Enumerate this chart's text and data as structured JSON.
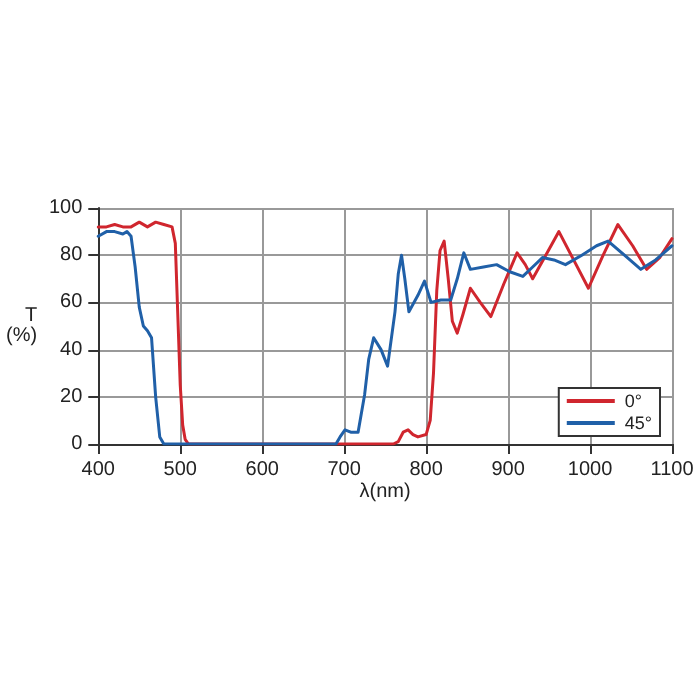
{
  "chart_data": {
    "type": "line",
    "xlabel": "λ(nm)",
    "ylabel": "T\n(%)",
    "xlim": [
      400,
      1100
    ],
    "xticks": [
      400,
      500,
      600,
      700,
      800,
      900,
      1000,
      1100
    ],
    "ylim": [
      0,
      100
    ],
    "yticks": [
      0,
      20,
      40,
      60,
      80,
      100
    ],
    "grid": true,
    "legend": "bottom right",
    "marker": "none",
    "line_style": "solid",
    "series": [
      {
        "name": "0°",
        "color": "#d0262e",
        "x": [
          400,
          410,
          420,
          430,
          440,
          450,
          460,
          470,
          480,
          490,
          494,
          497,
          500,
          503,
          506,
          510,
          600,
          700,
          760,
          766,
          772,
          778,
          784,
          790,
          800,
          805,
          809,
          813,
          817,
          822,
          827,
          832,
          838,
          845,
          854,
          866,
          879,
          895,
          911,
          921,
          930,
          946,
          962,
          980,
          998,
          1016,
          1034,
          1052,
          1069,
          1085,
          1100
        ],
        "values": [
          92,
          92,
          93,
          92,
          92,
          94,
          92,
          94,
          93,
          92,
          85,
          55,
          25,
          8,
          2,
          0,
          0,
          0,
          0,
          1,
          5,
          6,
          4,
          3,
          4,
          10,
          30,
          65,
          82,
          86,
          70,
          52,
          47,
          55,
          66,
          60,
          54,
          68,
          81,
          76,
          70,
          80,
          90,
          78,
          66,
          80,
          93,
          84,
          74,
          79,
          87
        ]
      },
      {
        "name": "45°",
        "color": "#2060a8",
        "x": [
          400,
          410,
          420,
          430,
          435,
          440,
          445,
          450,
          455,
          460,
          465,
          470,
          475,
          480,
          600,
          690,
          695,
          701,
          708,
          717,
          725,
          730,
          736,
          745,
          753,
          762,
          766,
          770,
          774,
          779,
          790,
          798,
          806,
          818,
          830,
          838,
          846,
          854,
          870,
          886,
          902,
          918,
          930,
          942,
          956,
          970,
          990,
          1008,
          1022,
          1042,
          1062,
          1080,
          1100
        ],
        "values": [
          88,
          90,
          90,
          89,
          90,
          88,
          75,
          58,
          50,
          48,
          45,
          20,
          3,
          0,
          0,
          0,
          3,
          6,
          5,
          5,
          21,
          36,
          45,
          40,
          33,
          56,
          72,
          80,
          70,
          56,
          63,
          69,
          60,
          61,
          61,
          70,
          81,
          74,
          75,
          76,
          73,
          71,
          75,
          79,
          78,
          76,
          80,
          84,
          86,
          80,
          74,
          78,
          84
        ]
      }
    ]
  }
}
